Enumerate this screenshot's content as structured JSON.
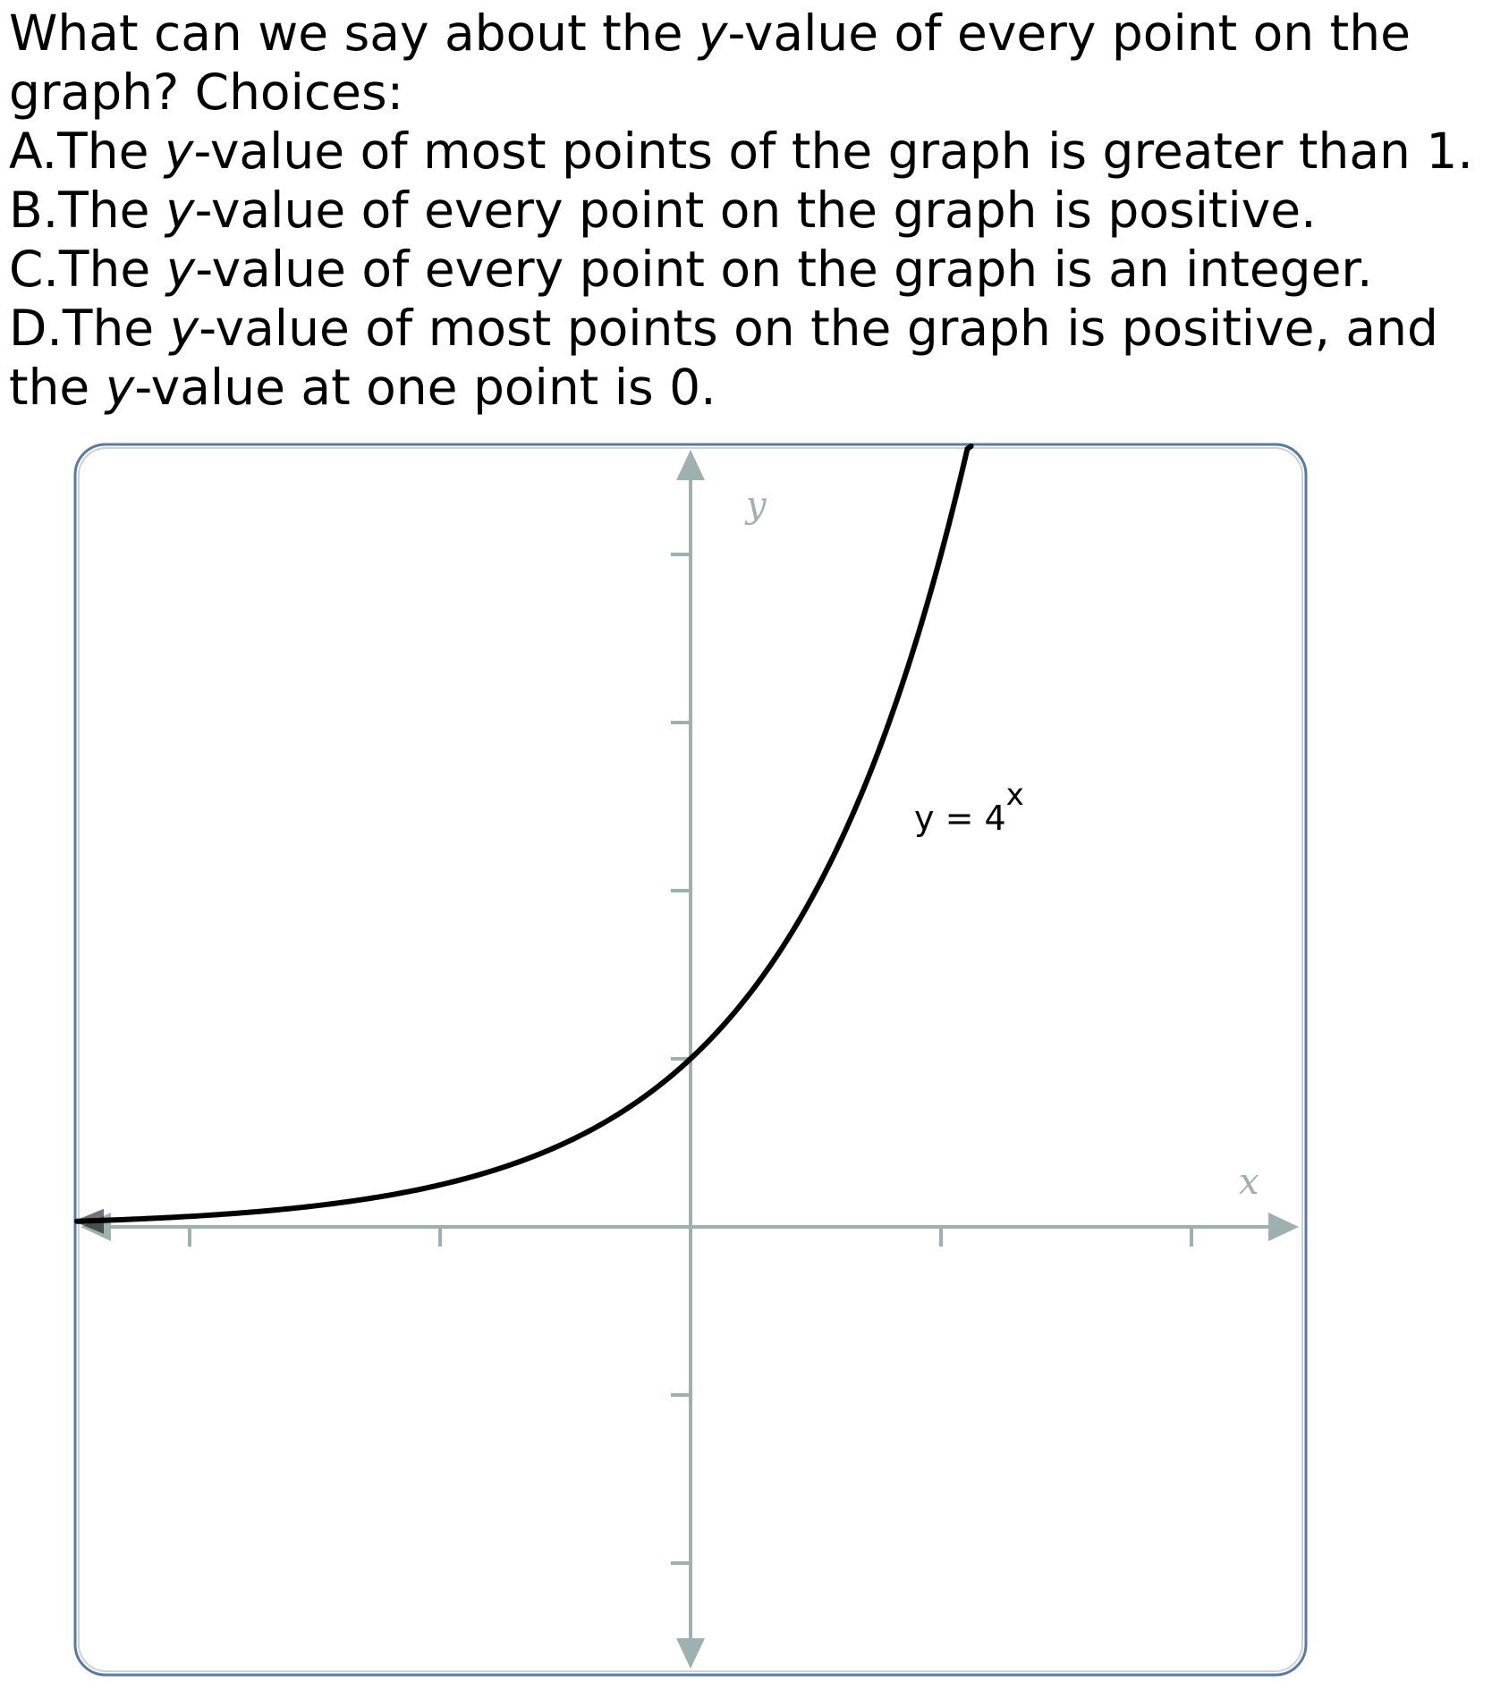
{
  "question": {
    "stem_1": "What can we say about the ",
    "stem_var": "y",
    "stem_2": "-value of every point on the",
    "stem_line2": "graph? Choices:",
    "choices": [
      {
        "letter": "A.",
        "pre": "The ",
        "var": "y",
        "post": "-value of most points of the graph is greater than 1."
      },
      {
        "letter": "B.",
        "pre": "The ",
        "var": "y",
        "post": "-value of every point on the graph is positive."
      },
      {
        "letter": "C.",
        "pre": "The ",
        "var": "y",
        "post": "-value of every point on the graph is an integer."
      },
      {
        "letter": "D.",
        "pre": "The ",
        "var": "y",
        "post": "-value of most points on the graph is positive, and"
      }
    ],
    "choice_d_line2_pre": "the ",
    "choice_d_line2_var": "y",
    "choice_d_line2_post": "-value at one point is 0."
  },
  "chart_data": {
    "type": "line",
    "function": "y = 4^x",
    "x_axis_label": "x",
    "y_axis_label": "y",
    "curve_label_base": "y = 4",
    "curve_label_exponent": "x",
    "xlim": [
      -2.45,
      2.45
    ],
    "ylim": [
      -2.65,
      4.4
    ],
    "x_ticks": [
      -2,
      -1,
      1,
      2
    ],
    "y_ticks": [
      -2,
      -1,
      1,
      2,
      3,
      4
    ],
    "grid": false,
    "series": [
      {
        "values": "y = 4^x",
        "color": "#000000",
        "x_range": [
          -2.45,
          1.12
        ]
      }
    ],
    "colors": {
      "axis": "#9fb0b0",
      "frame": "#5a7aa0",
      "curve": "#000000"
    }
  }
}
